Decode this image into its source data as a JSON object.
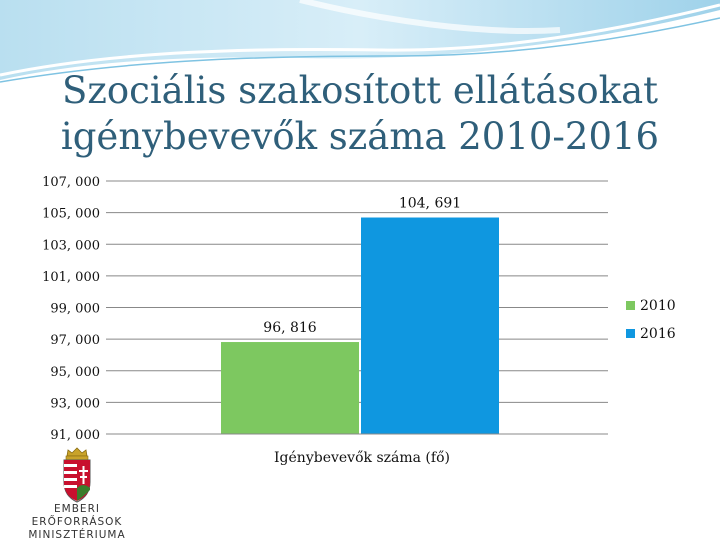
{
  "title": "Szociális szakosított ellátásokat igénybevevők száma 2010-2016",
  "colors": {
    "title": "#2f5f7a",
    "series_2010": "#7dc860",
    "series_2016": "#0f97e0",
    "gridline": "#888888"
  },
  "logo": {
    "line1": "Emberi Erőforrások",
    "line2": "Minisztériuma",
    "emblem": "hungarian-coat-of-arms-icon"
  },
  "chart_data": {
    "type": "bar",
    "categories": [
      "Igénybevevők száma (fő)"
    ],
    "series": [
      {
        "name": "2010",
        "values": [
          96816
        ],
        "label": "96, 816",
        "color": "#7dc860"
      },
      {
        "name": "2016",
        "values": [
          104691
        ],
        "label": "104, 691",
        "color": "#0f97e0"
      }
    ],
    "ylim": [
      91000,
      107000
    ],
    "yticks": [
      107000,
      105000,
      103000,
      101000,
      99000,
      97000,
      95000,
      93000,
      91000
    ],
    "ytick_labels": [
      "107, 000",
      "105, 000",
      "103, 000",
      "101, 000",
      "99, 000",
      "97, 000",
      "95, 000",
      "93, 000",
      "91, 000"
    ],
    "grid": true,
    "legend": "right"
  }
}
